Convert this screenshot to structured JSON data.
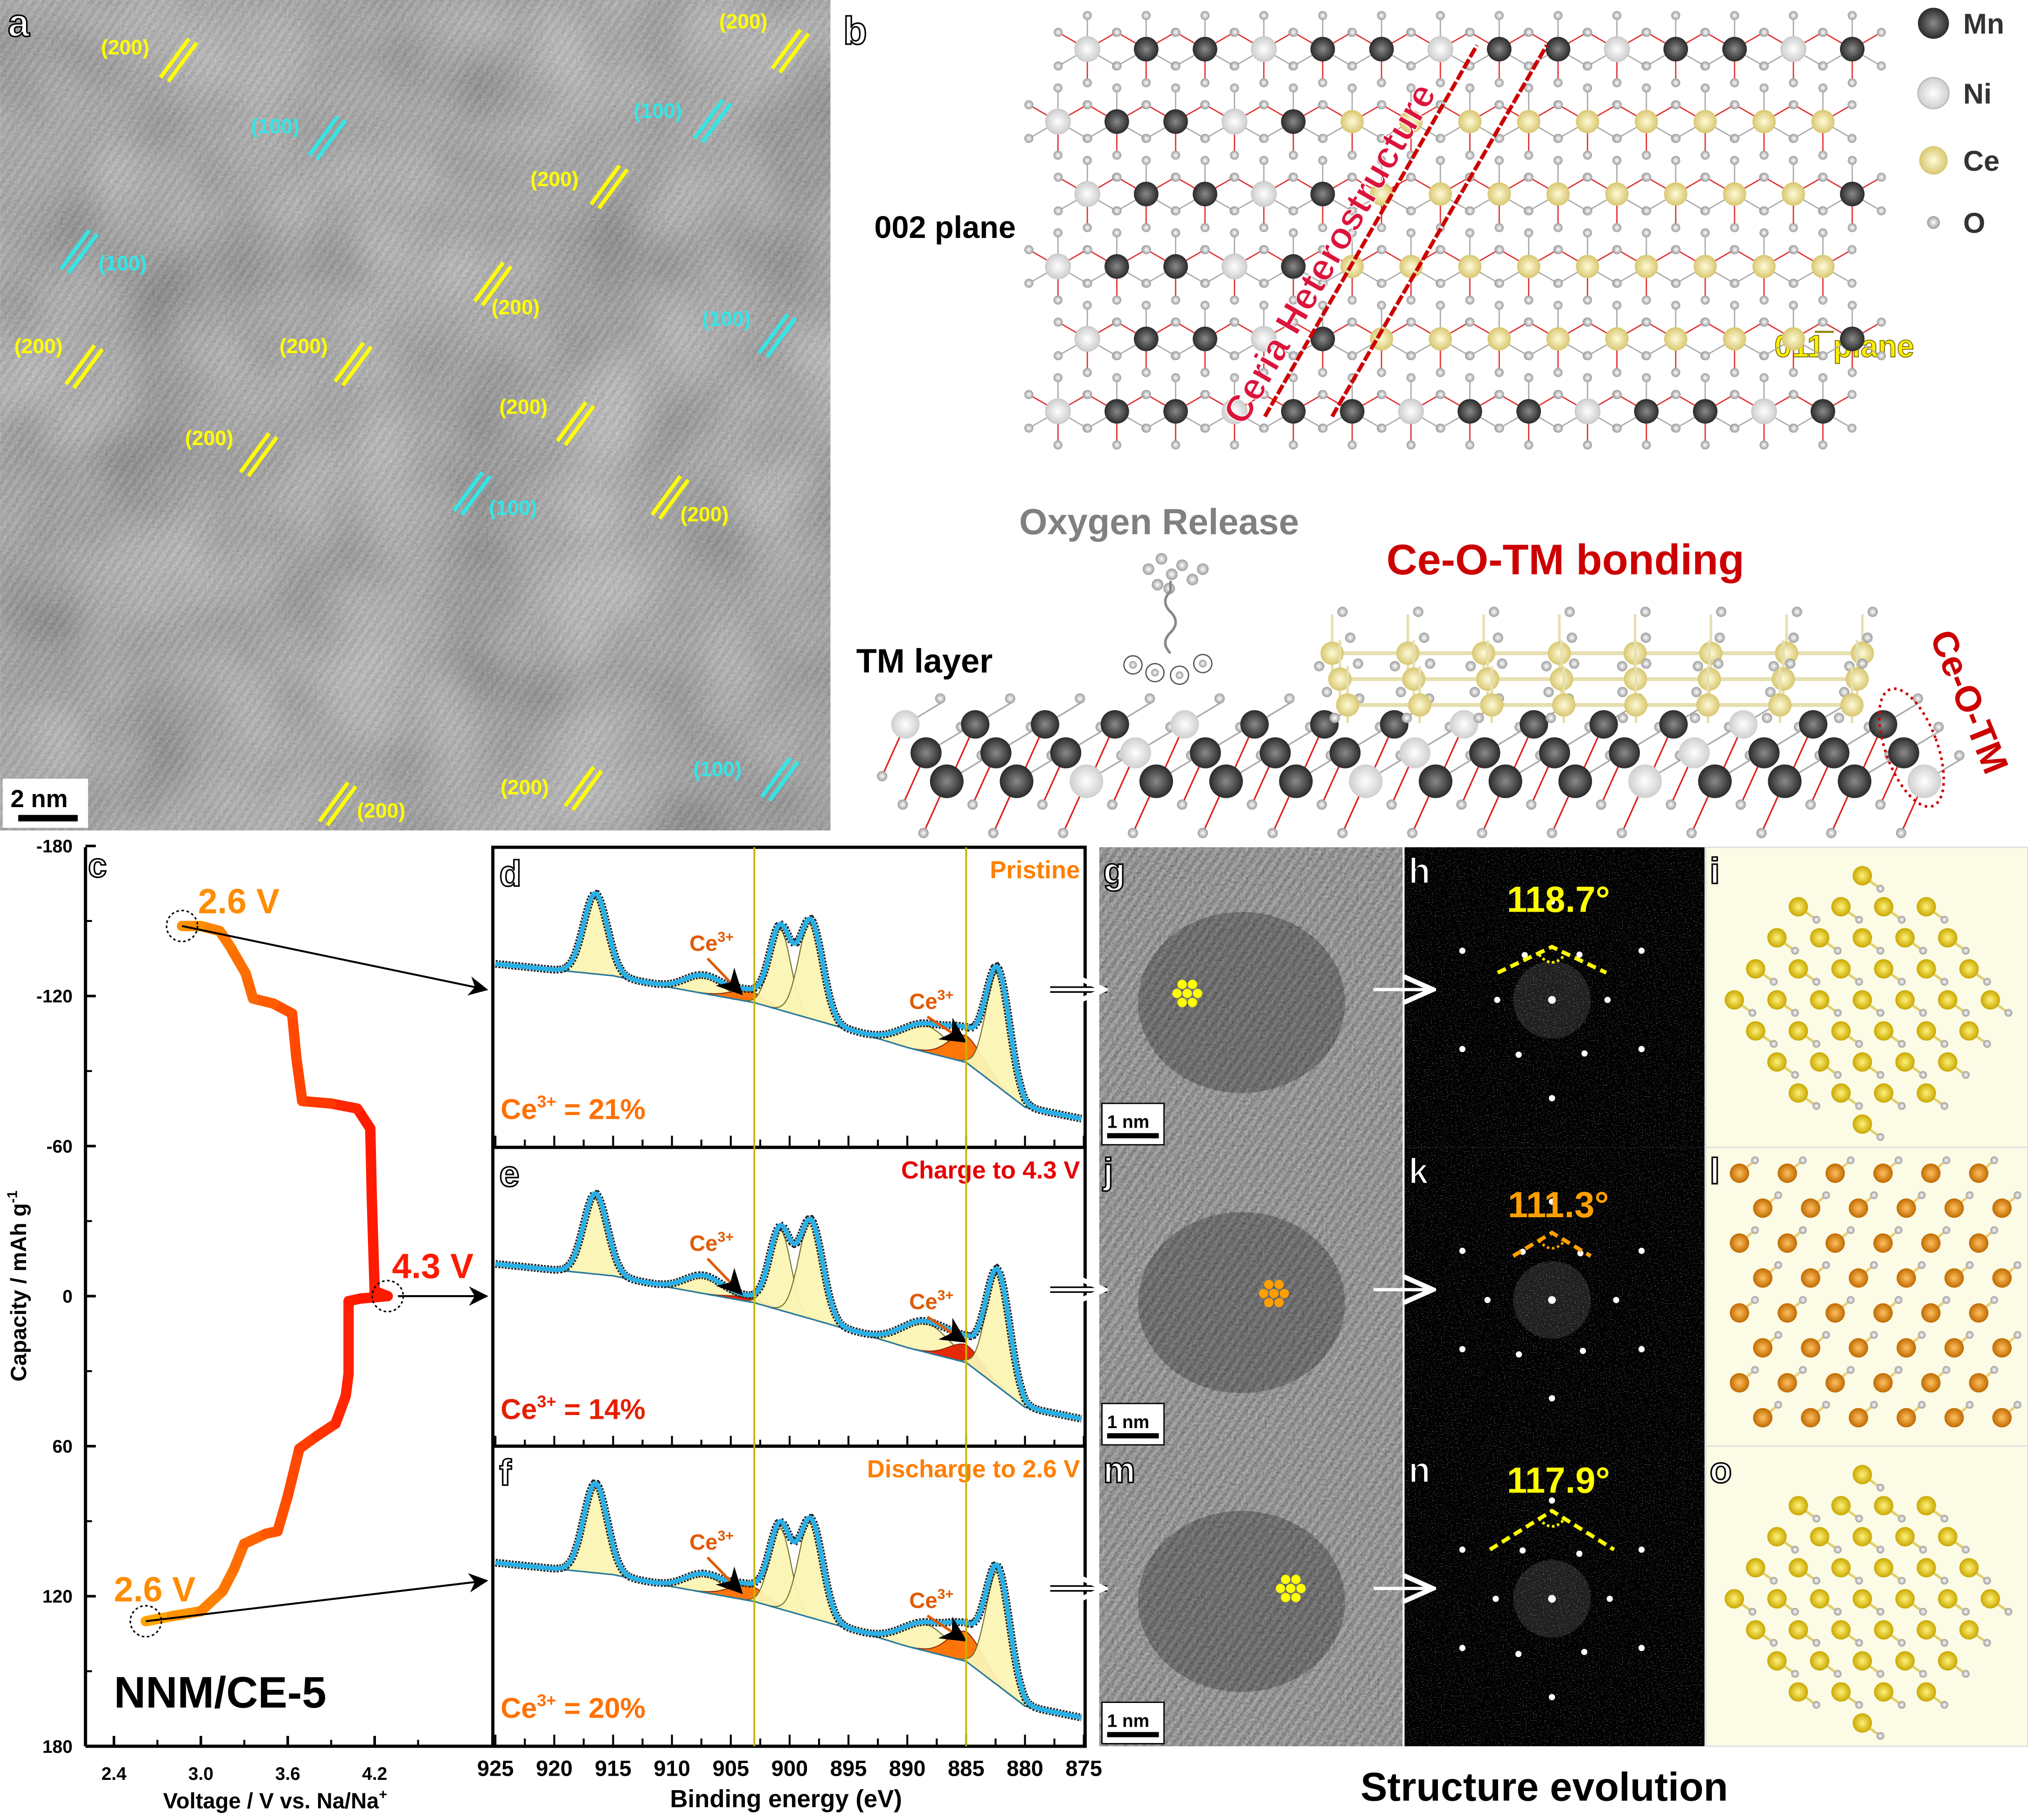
{
  "panel_a": {
    "label": "a",
    "scale_bar": "2 nm",
    "plane_labels": [
      {
        "text": "(200)",
        "color": "#ffff00"
      },
      {
        "text": "(100)",
        "color": "#33e6e6"
      },
      {
        "text": "(200)",
        "color": "#ffff00"
      },
      {
        "text": "(100)",
        "color": "#33e6e6"
      },
      {
        "text": "(200)",
        "color": "#ffff00"
      },
      {
        "text": "(100)",
        "color": "#33e6e6"
      },
      {
        "text": "(200)",
        "color": "#ffff00"
      },
      {
        "text": "(100)",
        "color": "#33e6e6"
      },
      {
        "text": "(200)",
        "color": "#ffff00"
      },
      {
        "text": "(200)",
        "color": "#ffff00"
      },
      {
        "text": "(200)",
        "color": "#ffff00"
      },
      {
        "text": "(200)",
        "color": "#ffff00"
      },
      {
        "text": "(100)",
        "color": "#33e6e6"
      },
      {
        "text": "(200)",
        "color": "#ffff00"
      },
      {
        "text": "(100)",
        "color": "#33e6e6"
      },
      {
        "text": "(200)",
        "color": "#ffff00"
      },
      {
        "text": "(200)",
        "color": "#ffff00"
      }
    ]
  },
  "panel_b": {
    "label": "b",
    "legend": [
      {
        "element": "Mn",
        "color": "#3c3c3c"
      },
      {
        "element": "Ni",
        "color": "#f2f2f2"
      },
      {
        "element": "Ce",
        "color": "#efe49a"
      },
      {
        "element": "O",
        "color": "#c8c8c8"
      }
    ],
    "plane_002": "002 plane",
    "ceria_label": "Ceria Heterostructure",
    "plane_011": "011̅ plane",
    "oxygen_release": "Oxygen Release",
    "bonding_title": "Ce-O-TM bonding",
    "tm_layer": "TM layer",
    "ce_o_tm": "Ce-O-TM"
  },
  "panel_c": {
    "label": "c",
    "sample": "NNM/CE-5",
    "point_labels": [
      "2.6 V",
      "4.3 V",
      "2.6 V"
    ],
    "colors": {
      "low_voltage": "#ffb000",
      "high_voltage": "#ff1a00"
    }
  },
  "chart_data": [
    {
      "panel": "c",
      "type": "line",
      "xlabel": "Voltage / V vs. Na/Na",
      "xlabel_sup": "+",
      "ylabel": "Capacity / mAh g",
      "ylabel_sup": "-1",
      "xlim": [
        2.2,
        5.0
      ],
      "ylim": [
        -180,
        180
      ],
      "y_inverted": true,
      "xticks": [
        "2.4",
        "3.0",
        "3.6",
        "4.2"
      ],
      "yticks": [
        "-180",
        "-120",
        "-60",
        "0",
        "60",
        "120",
        "180"
      ],
      "x": [
        2.62,
        2.8,
        3.0,
        3.15,
        3.23,
        3.3,
        3.45,
        3.53,
        3.6,
        3.68,
        3.8,
        3.93,
        4.0,
        4.02,
        4.02,
        4.1,
        4.29,
        4.2,
        4.18,
        4.17,
        4.08,
        3.9,
        3.7,
        3.66,
        3.63,
        3.5,
        3.36,
        3.31,
        3.2,
        3.13,
        3.0,
        2.87
      ],
      "y": [
        130,
        128,
        126,
        118,
        109,
        99,
        95,
        94,
        80,
        61,
        56,
        51,
        40,
        31,
        2,
        1,
        0,
        -2,
        -40,
        -67,
        -75,
        -77,
        -78,
        -95,
        -113,
        -117,
        -119,
        -129,
        -140,
        -146,
        -148,
        -148
      ]
    },
    {
      "panel": "d",
      "type": "line",
      "title": "Pristine",
      "title_color": "#ff7f00",
      "xlabel": "Binding energy (eV)",
      "xlim": [
        925,
        875
      ],
      "xticks": [
        "925",
        "920",
        "915",
        "910",
        "905",
        "900",
        "895",
        "890",
        "885",
        "880",
        "875"
      ],
      "reference_lines_eV": [
        903,
        885
      ],
      "ce3_label": "Ce",
      "ce3_sup": "3+",
      "ce3_value": " = 21%",
      "ce3_color": "#ff7000",
      "background": [
        [
          925,
          61
        ],
        [
          915,
          57
        ],
        [
          910,
          53
        ],
        [
          903,
          48
        ],
        [
          895,
          39
        ],
        [
          890,
          33
        ],
        [
          885,
          28
        ],
        [
          880,
          13
        ],
        [
          875,
          9
        ]
      ],
      "peaks": [
        {
          "center": 916.5,
          "height": 27,
          "width": 1.0,
          "ce3": false
        },
        {
          "center": 907.3,
          "height": 6,
          "width": 1.6,
          "ce3": false
        },
        {
          "center": 903.5,
          "height": 3.5,
          "width": 1.5,
          "ce3": true
        },
        {
          "center": 900.8,
          "height": 27,
          "width": 0.9,
          "ce3": false
        },
        {
          "center": 898.2,
          "height": 33,
          "width": 1.0,
          "ce3": false
        },
        {
          "center": 888.5,
          "height": 9,
          "width": 2.0,
          "ce3": false
        },
        {
          "center": 885.0,
          "height": 9,
          "width": 1.5,
          "ce3": true
        },
        {
          "center": 882.3,
          "height": 38,
          "width": 1.0,
          "ce3": false
        }
      ]
    },
    {
      "panel": "e",
      "type": "line",
      "title": "Charge to 4.3 V",
      "title_color": "#e60000",
      "xlim": [
        925,
        875
      ],
      "ce3_label": "Ce",
      "ce3_sup": "3+",
      "ce3_value": " = 14%",
      "ce3_color": "#e61e00",
      "background": [
        [
          925,
          61
        ],
        [
          915,
          57
        ],
        [
          910,
          53
        ],
        [
          903,
          48
        ],
        [
          895,
          39
        ],
        [
          890,
          33
        ],
        [
          885,
          28
        ],
        [
          880,
          13
        ],
        [
          875,
          9
        ]
      ],
      "peaks": [
        {
          "center": 916.5,
          "height": 27,
          "width": 1.0,
          "ce3": false
        },
        {
          "center": 907.3,
          "height": 6,
          "width": 1.6,
          "ce3": false
        },
        {
          "center": 903.5,
          "height": 1.5,
          "width": 1.5,
          "ce3": true
        },
        {
          "center": 900.8,
          "height": 27,
          "width": 0.9,
          "ce3": false
        },
        {
          "center": 898.2,
          "height": 33,
          "width": 1.0,
          "ce3": false
        },
        {
          "center": 888.5,
          "height": 10,
          "width": 2.0,
          "ce3": false
        },
        {
          "center": 885.0,
          "height": 6,
          "width": 1.5,
          "ce3": true
        },
        {
          "center": 882.3,
          "height": 38,
          "width": 1.0,
          "ce3": false
        }
      ]
    },
    {
      "panel": "f",
      "type": "line",
      "title": "Discharge to 2.6 V",
      "title_color": "#ff7f00",
      "xlim": [
        925,
        875
      ],
      "ce3_label": "Ce",
      "ce3_sup": "3+",
      "ce3_value": " = 20%",
      "ce3_color": "#ff7000",
      "background": [
        [
          925,
          61
        ],
        [
          915,
          57
        ],
        [
          910,
          53
        ],
        [
          903,
          48
        ],
        [
          895,
          39
        ],
        [
          890,
          33
        ],
        [
          885,
          28
        ],
        [
          880,
          13
        ],
        [
          875,
          9
        ]
      ],
      "peaks": [
        {
          "center": 916.5,
          "height": 30,
          "width": 1.0,
          "ce3": false
        },
        {
          "center": 907.3,
          "height": 6,
          "width": 1.6,
          "ce3": false
        },
        {
          "center": 903.5,
          "height": 5,
          "width": 1.6,
          "ce3": true
        },
        {
          "center": 900.8,
          "height": 27,
          "width": 0.9,
          "ce3": false
        },
        {
          "center": 898.2,
          "height": 33,
          "width": 1.0,
          "ce3": false
        },
        {
          "center": 888.5,
          "height": 9,
          "width": 2.0,
          "ce3": false
        },
        {
          "center": 885.0,
          "height": 10,
          "width": 1.5,
          "ce3": true
        },
        {
          "center": 882.3,
          "height": 38,
          "width": 1.0,
          "ce3": false
        }
      ]
    }
  ],
  "structure": {
    "title": "Structure evolution",
    "scale_bar": "1 nm",
    "rows": [
      {
        "tem_label": "g",
        "fft_label": "h",
        "model_label": "i",
        "angle": "118.7°",
        "color": "#ffff00"
      },
      {
        "tem_label": "j",
        "fft_label": "k",
        "model_label": "l",
        "angle": "111.3°",
        "color": "#ffa000"
      },
      {
        "tem_label": "m",
        "fft_label": "n",
        "model_label": "o",
        "angle": "117.9°",
        "color": "#ffff00"
      }
    ]
  }
}
